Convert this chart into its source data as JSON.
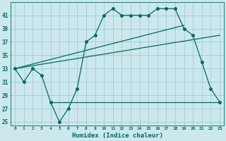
{
  "title": "",
  "xlabel": "Humidex (Indice chaleur)",
  "ylabel": "",
  "bg_color": "#cce8ec",
  "grid_color": "#9ecdd4",
  "line_color": "#006868",
  "xlim": [
    -0.5,
    23.5
  ],
  "ylim": [
    24.5,
    43
  ],
  "yticks": [
    25,
    27,
    29,
    31,
    33,
    35,
    37,
    39,
    41
  ],
  "xticks": [
    0,
    1,
    2,
    3,
    4,
    5,
    6,
    7,
    8,
    9,
    10,
    11,
    12,
    13,
    14,
    15,
    16,
    17,
    18,
    19,
    20,
    21,
    22,
    23
  ],
  "series1_x": [
    0,
    1,
    2,
    3,
    4,
    5,
    6,
    7,
    8,
    9,
    10,
    11,
    12,
    13,
    14,
    15,
    16,
    17,
    18,
    19,
    20,
    21,
    22,
    23
  ],
  "series1_y": [
    33,
    31,
    33,
    32,
    28,
    25,
    27,
    30,
    37,
    38,
    41,
    42,
    41,
    41,
    41,
    41,
    42,
    42,
    42,
    39,
    38,
    34,
    30,
    28
  ],
  "series2_x": [
    0,
    19
  ],
  "series2_y": [
    33,
    39.5
  ],
  "series3_x": [
    0,
    23
  ],
  "series3_y": [
    33,
    38
  ],
  "series4_x": [
    4,
    23
  ],
  "series4_y": [
    28,
    28
  ],
  "marker": "o",
  "markersize": 2.5,
  "linewidth": 0.9
}
